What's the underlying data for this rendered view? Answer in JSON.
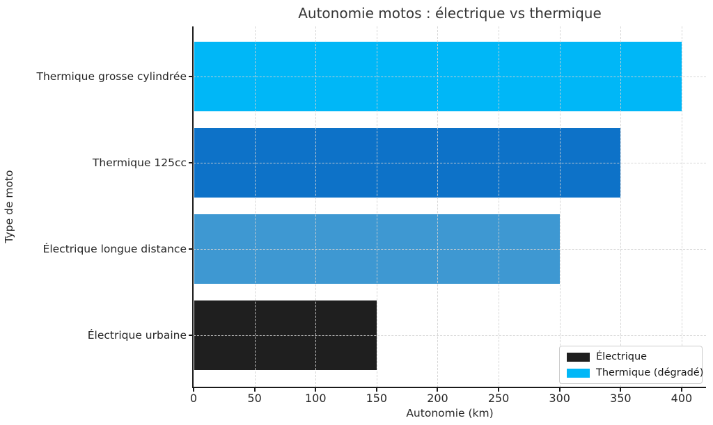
{
  "chart_data": {
    "type": "bar",
    "orientation": "horizontal",
    "title": "Autonomie motos : électrique vs thermique",
    "xlabel": "Autonomie (km)",
    "ylabel": "Type de moto",
    "categories": [
      "Thermique grosse cylindrée",
      "Thermique 125cc",
      "Électrique longue distance",
      "Électrique urbaine"
    ],
    "values": [
      400,
      350,
      300,
      150
    ],
    "bar_colors": [
      "#00b7f7",
      "#0d72c8",
      "#3e98d2",
      "#1f1f1f"
    ],
    "xticks": [
      0,
      50,
      100,
      150,
      200,
      250,
      300,
      350,
      400
    ],
    "xlim": [
      0,
      420
    ],
    "grid": "dashed, both axes, drawn over bars",
    "legend": {
      "position": "lower right",
      "entries": [
        {
          "label": "Électrique",
          "color": "#1f1f1f"
        },
        {
          "label": "Thermique (dégradé)",
          "color": "#00b7f7"
        }
      ]
    }
  }
}
